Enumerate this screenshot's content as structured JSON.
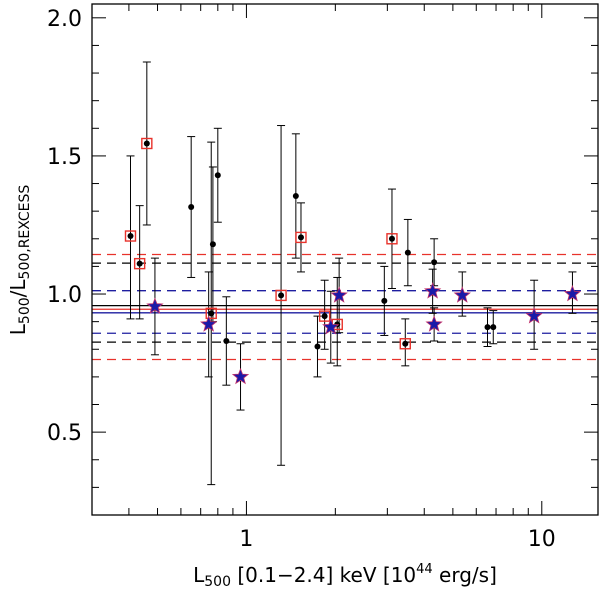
{
  "chart_data": {
    "type": "scatter",
    "title": "",
    "xlabel": {
      "main": "L",
      "sub": "500",
      "rest": " [0.1−2.4] keV [10",
      "sup": "44",
      "tail": " erg/s]"
    },
    "ylabel": {
      "main": "L",
      "sub": "500",
      "mid": "/L",
      "sub2": "500,REXCESS"
    },
    "xscale": "log",
    "xlim": [
      0.3,
      15.5
    ],
    "ylim": [
      0.2,
      2.05
    ],
    "x_ticks": [
      {
        "value": 1,
        "label": "1"
      },
      {
        "value": 10,
        "label": "10"
      }
    ],
    "y_ticks": [
      {
        "value": 0.5,
        "label": "0.5"
      },
      {
        "value": 1.0,
        "label": "1.0"
      },
      {
        "value": 1.5,
        "label": "1.5"
      },
      {
        "value": 2.0,
        "label": "2.0"
      }
    ],
    "colors": {
      "black": "#000000",
      "red": "#e8322b",
      "blue": "#1e1ea0",
      "star_fill": "#1a1aa8",
      "star_edge": "#c0306a",
      "square": "#e8322b"
    },
    "reference_lines": [
      {
        "name": "black-mean",
        "y": 0.958,
        "style": "solid",
        "color": "black"
      },
      {
        "name": "red-mean",
        "y": 0.945,
        "style": "solid",
        "color": "red"
      },
      {
        "name": "blue-mean",
        "y": 0.932,
        "style": "solid",
        "color": "blue"
      },
      {
        "name": "red-upper",
        "y": 1.143,
        "style": "dashed",
        "color": "red"
      },
      {
        "name": "black-upper",
        "y": 1.112,
        "style": "dashed",
        "color": "black"
      },
      {
        "name": "blue-upper",
        "y": 1.012,
        "style": "dashed",
        "color": "blue"
      },
      {
        "name": "blue-lower",
        "y": 0.858,
        "style": "dashed",
        "color": "blue"
      },
      {
        "name": "black-lower",
        "y": 0.826,
        "style": "dashed",
        "color": "black"
      },
      {
        "name": "red-lower",
        "y": 0.763,
        "style": "dashed",
        "color": "red"
      }
    ],
    "series": [
      {
        "name": "dots",
        "marker": "dot",
        "points": [
          {
            "x": 0.405,
            "y": 1.21,
            "lo": 0.91,
            "hi": 1.5,
            "boxed": true
          },
          {
            "x": 0.435,
            "y": 1.11,
            "lo": 0.91,
            "hi": 1.32,
            "boxed": true
          },
          {
            "x": 0.46,
            "y": 1.545,
            "lo": 1.25,
            "hi": 1.84,
            "boxed": true
          },
          {
            "x": 0.65,
            "y": 1.315,
            "lo": 1.06,
            "hi": 1.57,
            "boxed": false
          },
          {
            "x": 0.76,
            "y": 0.93,
            "lo": 0.31,
            "hi": 1.55,
            "boxed": true
          },
          {
            "x": 0.77,
            "y": 1.18,
            "lo": 0.9,
            "hi": 1.46,
            "boxed": false
          },
          {
            "x": 0.8,
            "y": 1.43,
            "lo": 1.26,
            "hi": 1.6,
            "boxed": false
          },
          {
            "x": 0.855,
            "y": 0.83,
            "lo": 0.67,
            "hi": 0.99,
            "boxed": false
          },
          {
            "x": 1.31,
            "y": 0.995,
            "lo": 0.38,
            "hi": 1.61,
            "boxed": true
          },
          {
            "x": 1.47,
            "y": 1.355,
            "lo": 1.13,
            "hi": 1.58,
            "boxed": false
          },
          {
            "x": 1.53,
            "y": 1.205,
            "lo": 1.08,
            "hi": 1.33,
            "boxed": true
          },
          {
            "x": 1.74,
            "y": 0.81,
            "lo": 0.7,
            "hi": 0.92,
            "boxed": false
          },
          {
            "x": 1.84,
            "y": 0.92,
            "lo": 0.8,
            "hi": 1.05,
            "boxed": true
          },
          {
            "x": 2.03,
            "y": 0.89,
            "lo": 0.74,
            "hi": 1.06,
            "boxed": true
          },
          {
            "x": 2.93,
            "y": 0.975,
            "lo": 0.85,
            "hi": 1.1,
            "boxed": false
          },
          {
            "x": 3.11,
            "y": 1.2,
            "lo": 1.02,
            "hi": 1.38,
            "boxed": true
          },
          {
            "x": 3.45,
            "y": 0.82,
            "lo": 0.74,
            "hi": 0.91,
            "boxed": true
          },
          {
            "x": 3.52,
            "y": 1.15,
            "lo": 1.03,
            "hi": 1.27,
            "boxed": false
          },
          {
            "x": 4.32,
            "y": 1.115,
            "lo": 1.03,
            "hi": 1.2,
            "boxed": false
          },
          {
            "x": 6.55,
            "y": 0.88,
            "lo": 0.81,
            "hi": 0.95,
            "boxed": false
          },
          {
            "x": 6.85,
            "y": 0.88,
            "lo": 0.82,
            "hi": 0.94,
            "boxed": false
          }
        ]
      },
      {
        "name": "stars",
        "marker": "star",
        "points": [
          {
            "x": 0.49,
            "y": 0.955,
            "lo": 0.78,
            "hi": 1.13
          },
          {
            "x": 0.745,
            "y": 0.89,
            "lo": 0.7,
            "hi": 1.08
          },
          {
            "x": 0.955,
            "y": 0.7,
            "lo": 0.58,
            "hi": 0.82
          },
          {
            "x": 1.93,
            "y": 0.88,
            "lo": 0.75,
            "hi": 1.01
          },
          {
            "x": 2.06,
            "y": 0.995,
            "lo": 0.86,
            "hi": 1.13
          },
          {
            "x": 4.27,
            "y": 1.01,
            "lo": 0.93,
            "hi": 1.09
          },
          {
            "x": 4.32,
            "y": 0.89,
            "lo": 0.83,
            "hi": 0.95
          },
          {
            "x": 5.38,
            "y": 0.995,
            "lo": 0.92,
            "hi": 1.08
          },
          {
            "x": 9.42,
            "y": 0.92,
            "lo": 0.8,
            "hi": 1.05
          },
          {
            "x": 12.7,
            "y": 1.0,
            "lo": 0.93,
            "hi": 1.08
          }
        ]
      }
    ]
  }
}
